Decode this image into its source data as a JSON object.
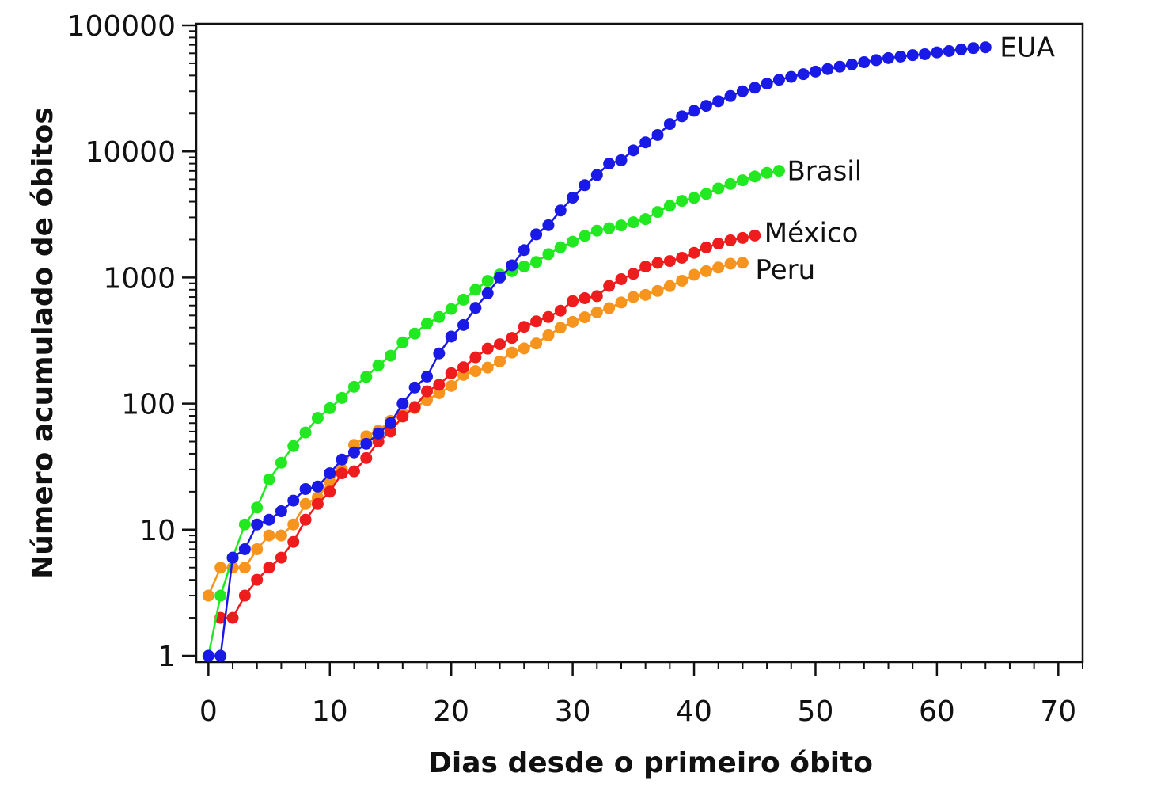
{
  "chart_data": {
    "type": "line",
    "title": "",
    "xlabel": "Dias desde o primeiro óbito",
    "ylabel": "Número acumulado de óbitos",
    "xlim": [
      -1,
      72
    ],
    "ylim": [
      1,
      100000
    ],
    "yscale": "log",
    "grid": false,
    "legend": "none",
    "x_ticks": [
      0,
      10,
      20,
      30,
      40,
      50,
      60,
      70
    ],
    "x_tick_labels": [
      "0",
      "10",
      "20",
      "30",
      "40",
      "50",
      "60",
      "70"
    ],
    "y_ticks": [
      1,
      10,
      100,
      1000,
      10000,
      100000
    ],
    "y_tick_labels": [
      "1",
      "10",
      "100",
      "1000",
      "10000",
      "100000"
    ],
    "series": [
      {
        "name": "EUA",
        "color": "#1a1ae6",
        "x": [
          0,
          1,
          2,
          3,
          4,
          5,
          6,
          7,
          8,
          9,
          10,
          11,
          12,
          13,
          14,
          15,
          16,
          17,
          18,
          19,
          20,
          21,
          22,
          23,
          24,
          25,
          26,
          27,
          28,
          29,
          30,
          31,
          32,
          33,
          34,
          35,
          36,
          37,
          38,
          39,
          40,
          41,
          42,
          43,
          44,
          45,
          46,
          47,
          48,
          49,
          50,
          51,
          52,
          53,
          54,
          55,
          56,
          57,
          58,
          59,
          60,
          61,
          62,
          63,
          64
        ],
        "y": [
          1,
          1,
          6,
          7,
          11,
          12,
          14,
          17,
          21,
          22,
          28,
          36,
          41,
          48,
          58,
          70,
          100,
          134,
          164,
          250,
          340,
          420,
          575,
          750,
          1000,
          1250,
          1650,
          2200,
          2600,
          3400,
          4300,
          5400,
          6500,
          8000,
          8500,
          10200,
          11800,
          13500,
          16500,
          19000,
          21000,
          23000,
          25000,
          27500,
          30000,
          32000,
          34500,
          37000,
          39000,
          41000,
          43000,
          45000,
          47000,
          49000,
          51000,
          53000,
          55000,
          56500,
          58000,
          59000,
          61000,
          62500,
          64500,
          66000,
          67000
        ]
      },
      {
        "name": "Brasil",
        "color": "#22e822",
        "x": [
          0,
          1,
          2,
          3,
          4,
          5,
          6,
          7,
          8,
          9,
          10,
          11,
          12,
          13,
          14,
          15,
          16,
          17,
          18,
          19,
          20,
          21,
          22,
          23,
          24,
          25,
          26,
          27,
          28,
          29,
          30,
          31,
          32,
          33,
          34,
          35,
          36,
          37,
          38,
          39,
          40,
          41,
          42,
          43,
          44,
          45,
          46,
          47
        ],
        "y": [
          1,
          3,
          6,
          11,
          15,
          25,
          34,
          46,
          59,
          77,
          92,
          111,
          136,
          163,
          201,
          240,
          306,
          359,
          431,
          486,
          563,
          667,
          800,
          941,
          1056,
          1124,
          1223,
          1328,
          1532,
          1736,
          1924,
          2141,
          2354,
          2462,
          2587,
          2741,
          2906,
          3313,
          3704,
          4057,
          4286,
          4603,
          5083,
          5513,
          5901,
          6329,
          6761,
          7025
        ]
      },
      {
        "name": "México",
        "color": "#ee1c1c",
        "x": [
          1,
          2,
          3,
          4,
          5,
          6,
          7,
          8,
          9,
          10,
          11,
          12,
          13,
          14,
          15,
          16,
          17,
          18,
          19,
          20,
          21,
          22,
          23,
          24,
          25,
          26,
          27,
          28,
          29,
          30,
          31,
          32,
          33,
          34,
          35,
          36,
          37,
          38,
          39,
          40,
          41,
          42,
          43,
          44,
          45
        ],
        "y": [
          2,
          2,
          3,
          4,
          5,
          6,
          8,
          12,
          16,
          20,
          28,
          29,
          37,
          50,
          60,
          79,
          94,
          125,
          141,
          174,
          194,
          233,
          273,
          296,
          332,
          406,
          449,
          486,
          546,
          650,
          686,
          712,
          857,
          970,
          1069,
          1221,
          1305,
          1351,
          1434,
          1569,
          1732,
          1859,
          1972,
          2061,
          2154
        ]
      },
      {
        "name": "Peru",
        "color": "#f7941d",
        "x": [
          0,
          1,
          2,
          3,
          4,
          5,
          6,
          7,
          8,
          9,
          10,
          11,
          12,
          13,
          14,
          15,
          16,
          17,
          18,
          19,
          20,
          21,
          22,
          23,
          24,
          25,
          26,
          27,
          28,
          29,
          30,
          31,
          32,
          33,
          34,
          35,
          36,
          37,
          38,
          39,
          40,
          41,
          42,
          43,
          44
        ],
        "y": [
          3,
          5,
          5,
          5,
          7,
          9,
          9,
          11,
          16,
          18,
          24,
          30,
          47,
          55,
          61,
          73,
          83,
          92,
          107,
          121,
          138,
          169,
          181,
          193,
          216,
          254,
          274,
          300,
          348,
          400,
          445,
          484,
          530,
          572,
          634,
          700,
          728,
          783,
          854,
          943,
          1051,
          1124,
          1200,
          1286,
          1309
        ]
      }
    ]
  }
}
